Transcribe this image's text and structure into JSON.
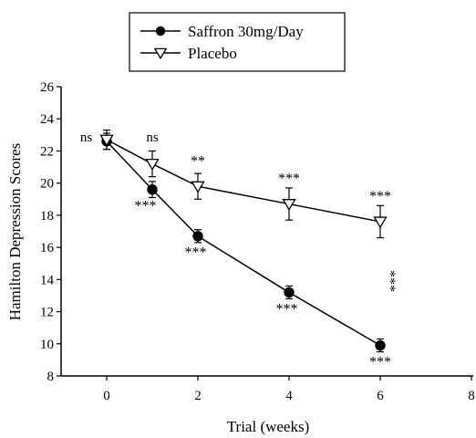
{
  "chart_data": {
    "type": "line",
    "xlabel": "Trial (weeks)",
    "ylabel": "Hamilton Depression Scores",
    "xlim": [
      -1,
      8
    ],
    "ylim": [
      8,
      26
    ],
    "x_ticks": [
      "0",
      "2",
      "4",
      "6",
      "8"
    ],
    "x_tick_values": [
      0,
      2,
      4,
      6,
      8
    ],
    "y_ticks": [
      "8",
      "10",
      "12",
      "14",
      "16",
      "18",
      "20",
      "22",
      "24",
      "26"
    ],
    "y_tick_values": [
      8,
      10,
      12,
      14,
      16,
      18,
      20,
      22,
      24,
      26
    ],
    "legend_position": "top",
    "series": [
      {
        "name": "Saffron 30mg/Day",
        "marker": "filled-circle",
        "color": "#000000",
        "x": [
          0,
          1,
          2,
          4,
          6
        ],
        "y": [
          22.6,
          19.6,
          16.7,
          13.2,
          9.9
        ],
        "error": [
          0.5,
          0.5,
          0.4,
          0.4,
          0.4
        ]
      },
      {
        "name": "Placebo",
        "marker": "open-triangle-down",
        "color": "#000000",
        "x": [
          0,
          1,
          2,
          4,
          6
        ],
        "y": [
          22.7,
          21.2,
          19.8,
          18.7,
          17.6
        ],
        "error": [
          0.6,
          0.8,
          0.8,
          1.0,
          1.0
        ]
      }
    ],
    "annotations": [
      {
        "text": "ns",
        "x": -0.45,
        "y": 22.6,
        "align": "middle"
      },
      {
        "text": "ns",
        "x": 1.0,
        "y": 22.6,
        "align": "middle"
      },
      {
        "text": "**",
        "x": 2.0,
        "y": 21.1,
        "align": "middle"
      },
      {
        "text": "***",
        "x": 4.0,
        "y": 20.0,
        "align": "middle"
      },
      {
        "text": "***",
        "x": 6.0,
        "y": 18.9,
        "align": "middle"
      },
      {
        "text": "***",
        "x": 0.85,
        "y": 18.3,
        "align": "middle"
      },
      {
        "text": "***",
        "x": 1.95,
        "y": 15.4,
        "align": "middle"
      },
      {
        "text": "***",
        "x": 3.95,
        "y": 11.9,
        "align": "middle"
      },
      {
        "text": "***",
        "x": 6.0,
        "y": 8.6,
        "align": "middle"
      }
    ],
    "vertical_annotation": {
      "text": "***",
      "x": 6.12,
      "y": 13.9
    }
  }
}
